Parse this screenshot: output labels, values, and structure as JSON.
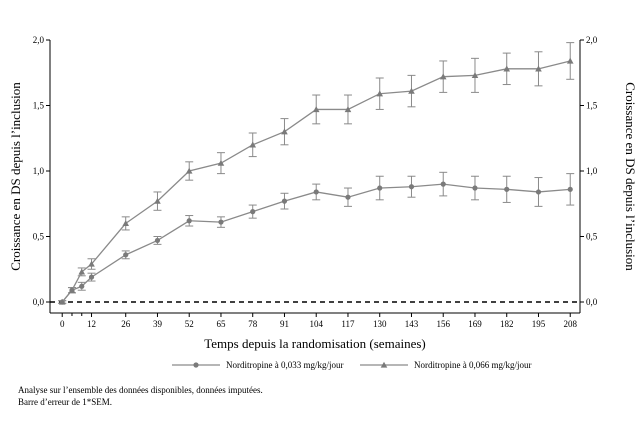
{
  "chart_data": {
    "type": "line",
    "xlabel": "Temps depuis la randomisation (semaines)",
    "ylabel_left": "Croissance en DS depuis l’inclusion",
    "ylabel_right": "Croissance en DS depuis l’inclusion",
    "x_ticks": [
      0,
      12,
      26,
      39,
      52,
      65,
      78,
      91,
      104,
      117,
      130,
      143,
      156,
      169,
      182,
      195,
      208
    ],
    "x_minor_ticks": [
      4,
      8
    ],
    "y_ticks": [
      "0,0",
      "0,5",
      "1,0",
      "1,5",
      "2,0"
    ],
    "y_tick_values": [
      0,
      0.5,
      1.0,
      1.5,
      2.0
    ],
    "ylim": [
      0,
      2.0
    ],
    "xlim": [
      -5,
      212
    ],
    "reference_line": {
      "y": 0,
      "style": "dashed"
    },
    "legend_position": "bottom",
    "series": [
      {
        "name": "Norditropine à 0,033 mg/kg/jour",
        "marker": "circle",
        "x": [
          0,
          4,
          8,
          12,
          26,
          39,
          52,
          65,
          78,
          91,
          104,
          117,
          130,
          143,
          156,
          169,
          182,
          195,
          208
        ],
        "y": [
          0.0,
          0.09,
          0.12,
          0.19,
          0.36,
          0.47,
          0.62,
          0.61,
          0.69,
          0.77,
          0.84,
          0.8,
          0.87,
          0.88,
          0.9,
          0.87,
          0.86,
          0.84,
          0.86
        ],
        "err": [
          0.01,
          0.02,
          0.03,
          0.03,
          0.03,
          0.03,
          0.04,
          0.04,
          0.05,
          0.06,
          0.06,
          0.07,
          0.09,
          0.08,
          0.09,
          0.09,
          0.1,
          0.11,
          0.12
        ]
      },
      {
        "name": "Norditropine à 0,066 mg/kg/jour",
        "marker": "triangle",
        "x": [
          0,
          4,
          8,
          12,
          26,
          39,
          52,
          65,
          78,
          91,
          104,
          117,
          130,
          143,
          156,
          169,
          182,
          195,
          208
        ],
        "y": [
          0.0,
          0.09,
          0.23,
          0.29,
          0.6,
          0.77,
          1.0,
          1.06,
          1.2,
          1.3,
          1.47,
          1.47,
          1.59,
          1.61,
          1.72,
          1.73,
          1.78,
          1.78,
          1.84
        ],
        "err": [
          0.01,
          0.02,
          0.03,
          0.04,
          0.05,
          0.07,
          0.07,
          0.08,
          0.09,
          0.1,
          0.11,
          0.11,
          0.12,
          0.12,
          0.12,
          0.13,
          0.12,
          0.13,
          0.14
        ]
      }
    ]
  },
  "footnotes": [
    "Analyse sur l’ensemble des données disponibles, données imputées.",
    "Barre d’erreur de 1*SEM."
  ]
}
